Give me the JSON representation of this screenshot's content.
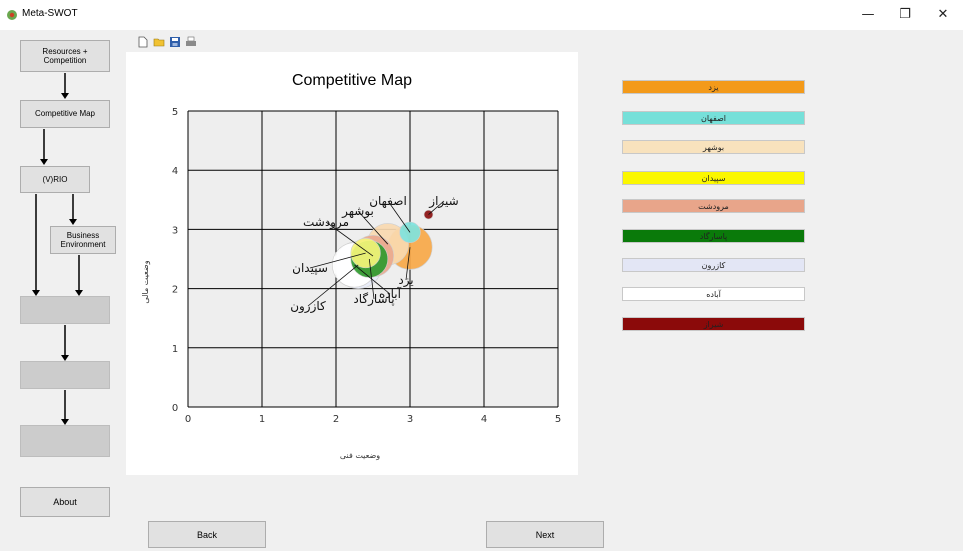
{
  "window": {
    "title": "Meta-SWOT",
    "minimize": "—",
    "maximize": "❐",
    "close": "✕"
  },
  "nav": {
    "resources": "Resources + Competition",
    "competitive_map": "Competitive Map",
    "vrio": "(V)RIO",
    "business_environment": "Business Environment",
    "about": "About"
  },
  "buttons": {
    "back": "Back",
    "next": "Next"
  },
  "toolbar": [
    "new-file-icon",
    "open-folder-icon",
    "save-icon",
    "print-icon"
  ],
  "chart_data": {
    "type": "scatter",
    "title": "Competitive Map",
    "xlabel": "وضعیت فنی",
    "ylabel": "وضعیت مالی",
    "xlim": [
      0,
      5
    ],
    "ylim": [
      0,
      5
    ],
    "xticks": [
      "0",
      "1",
      "2",
      "3",
      "4",
      "5"
    ],
    "yticks": [
      "0",
      "1",
      "2",
      "3",
      "4",
      "5"
    ],
    "grid": true,
    "points": [
      {
        "name": "یزد",
        "x": 3.0,
        "y": 2.7,
        "r": 0.3,
        "color": "#f7a848"
      },
      {
        "name": "اصفهان",
        "x": 3.0,
        "y": 2.95,
        "r": 0.14,
        "color": "#7fe3de"
      },
      {
        "name": "بوشهر",
        "x": 2.7,
        "y": 2.75,
        "r": 0.28,
        "color": "#f8d9b0"
      },
      {
        "name": "سپیدان",
        "x": 2.4,
        "y": 2.6,
        "r": 0.2,
        "color": "#f5f57a"
      },
      {
        "name": "مرودشت",
        "x": 2.5,
        "y": 2.55,
        "r": 0.28,
        "color": "#e9a88e"
      },
      {
        "name": "پاسارگاد",
        "x": 2.45,
        "y": 2.5,
        "r": 0.25,
        "color": "#2f9a2f"
      },
      {
        "name": "کازرون",
        "x": 2.3,
        "y": 2.4,
        "r": 0.32,
        "color": "#e8ecf8"
      },
      {
        "name": "آباده",
        "x": 2.25,
        "y": 2.4,
        "r": 0.3,
        "color": "#ffffff"
      },
      {
        "name": "شیراز",
        "x": 3.25,
        "y": 3.25,
        "r": 0.06,
        "color": "#8b1010"
      }
    ],
    "legend": [
      {
        "name": "یزد",
        "color": "#f39a1a"
      },
      {
        "name": "اصفهان",
        "color": "#76e0d9"
      },
      {
        "name": "بوشهر",
        "color": "#f8e2bd"
      },
      {
        "name": "سپیدان",
        "color": "#fbf700"
      },
      {
        "name": "مرودشت",
        "color": "#e8a58a"
      },
      {
        "name": "پاسارگاد",
        "color": "#0a7a0a"
      },
      {
        "name": "کازرون",
        "color": "#e3e6f5"
      },
      {
        "name": "آباده",
        "color": "#ffffff"
      },
      {
        "name": "شیراز",
        "color": "#8b0a0a"
      }
    ]
  }
}
